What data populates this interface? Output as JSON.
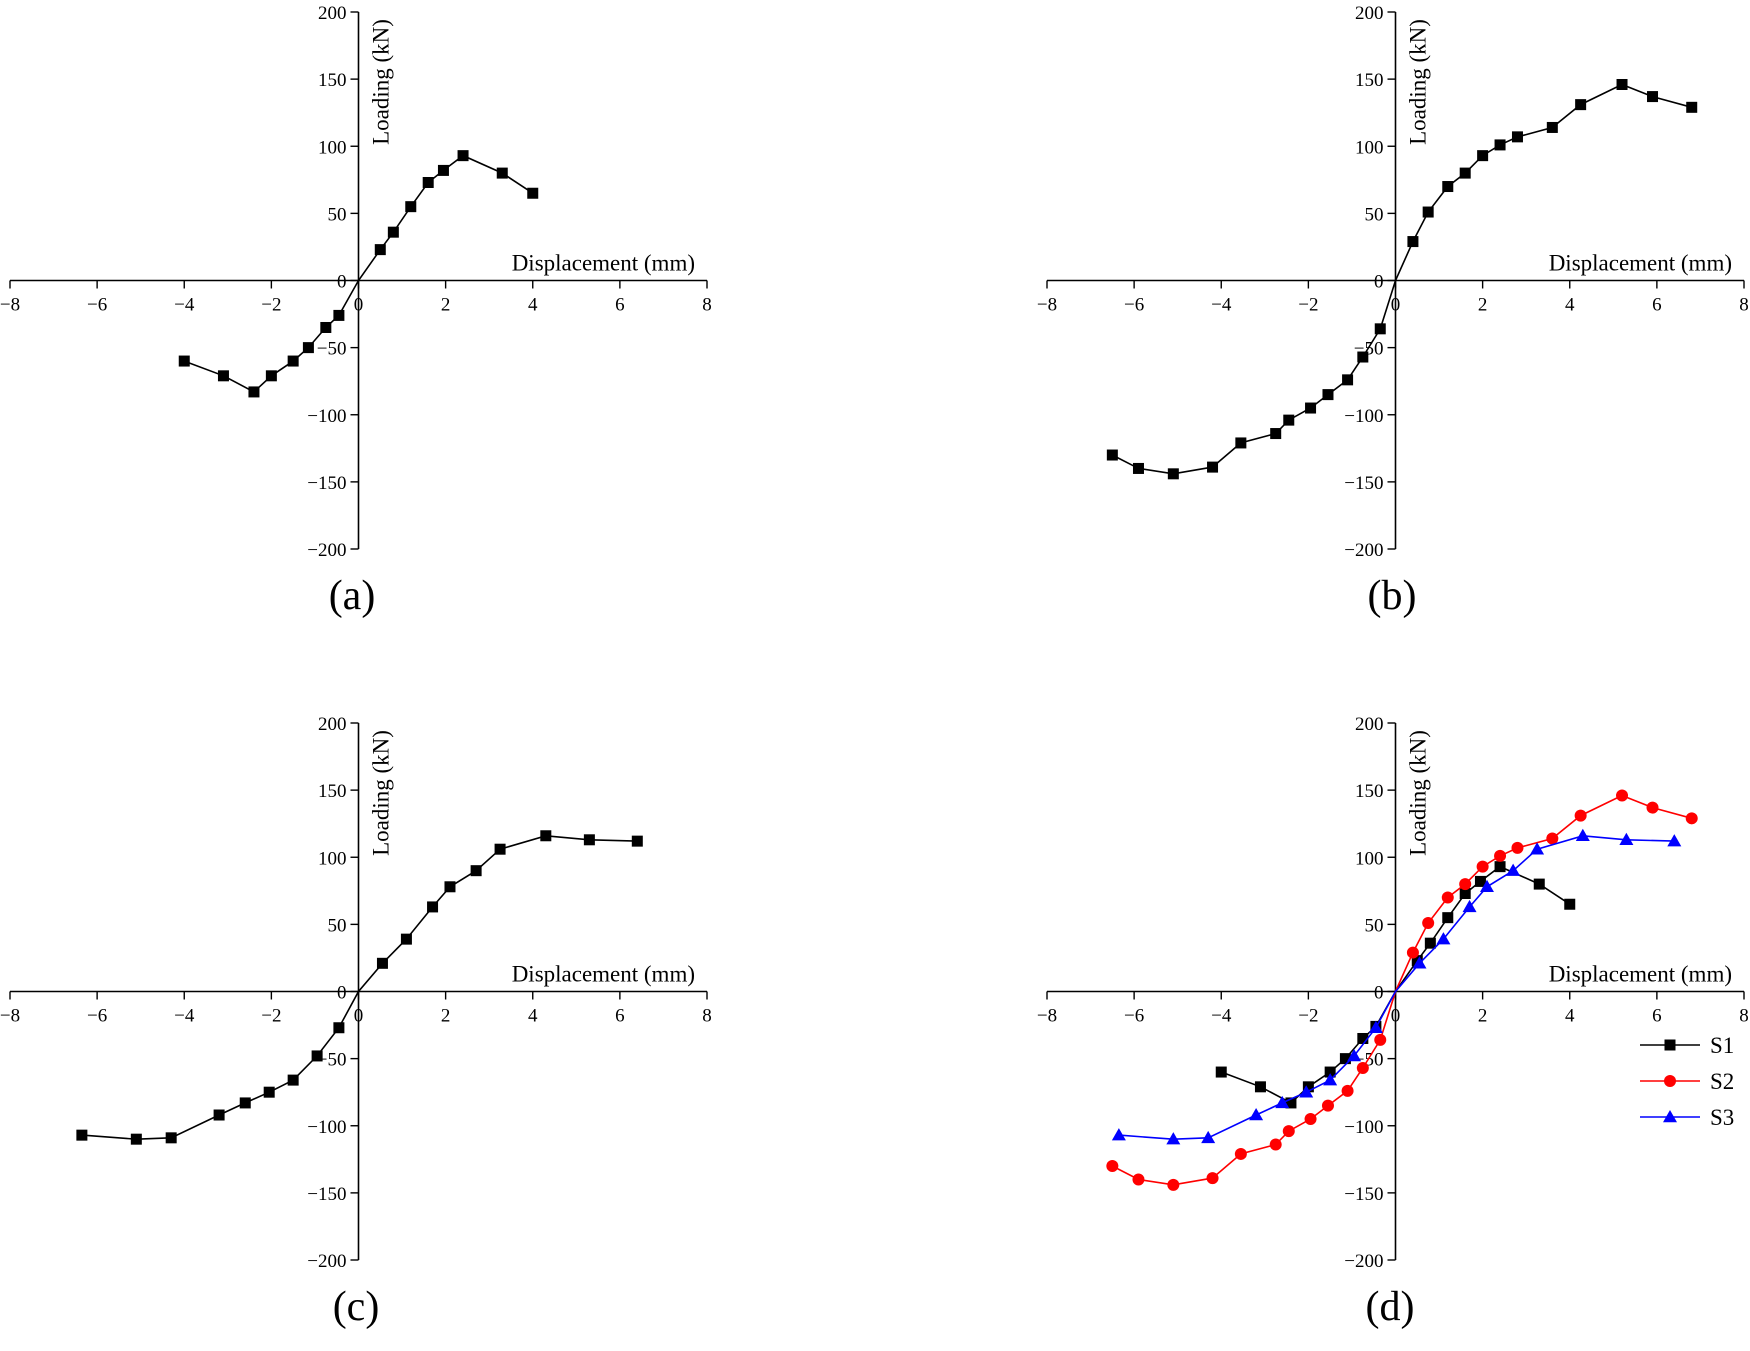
{
  "chart_data": [
    {
      "panel": "(a)",
      "type": "line",
      "xlabel": "Displacement (mm)",
      "ylabel": "Loading (kN)",
      "xlim": [
        -8,
        8
      ],
      "ylim": [
        -200,
        200
      ],
      "xticks": [
        -8,
        -6,
        -4,
        -2,
        0,
        2,
        4,
        6,
        8
      ],
      "yticks": [
        -200,
        -150,
        -100,
        -50,
        0,
        50,
        100,
        150,
        200
      ],
      "xtick_labels": [
        "−8",
        "−6",
        "−4",
        "−2",
        "0",
        "2",
        "4",
        "6",
        "8"
      ],
      "ytick_labels": [
        "−200",
        "−150",
        "−100",
        "−50",
        "0",
        "50",
        "100",
        "150",
        "200"
      ],
      "legend": false,
      "series": [
        {
          "color": "#000000",
          "marker": "square",
          "x": [
            -4.0,
            -3.1,
            -2.4,
            -2.0,
            -1.5,
            -1.15,
            -0.75,
            -0.45,
            0,
            0.5,
            0.8,
            1.2,
            1.6,
            1.95,
            2.4,
            3.3,
            4.0
          ],
          "y": [
            -60,
            -71,
            -83,
            -71,
            -60,
            -50,
            -35,
            -26,
            0,
            23,
            36,
            55,
            73,
            82,
            93,
            80,
            65
          ]
        }
      ]
    },
    {
      "panel": "(b)",
      "type": "line",
      "xlabel": "Displacement (mm)",
      "ylabel": "Loading (kN)",
      "xlim": [
        -8,
        8
      ],
      "ylim": [
        -200,
        200
      ],
      "xticks": [
        -8,
        -6,
        -4,
        -2,
        0,
        2,
        4,
        6,
        8
      ],
      "yticks": [
        -200,
        -150,
        -100,
        -50,
        0,
        50,
        100,
        150,
        200
      ],
      "xtick_labels": [
        "−8",
        "−6",
        "−4",
        "−2",
        "0",
        "2",
        "4",
        "6",
        "8"
      ],
      "ytick_labels": [
        "−200",
        "−150",
        "−100",
        "−50",
        "0",
        "50",
        "100",
        "150",
        "200"
      ],
      "legend": false,
      "series": [
        {
          "color": "#000000",
          "marker": "square",
          "x": [
            -6.5,
            -5.9,
            -5.1,
            -4.2,
            -3.55,
            -2.75,
            -2.45,
            -1.95,
            -1.55,
            -1.1,
            -0.75,
            -0.35,
            0,
            0.4,
            0.75,
            1.2,
            1.6,
            2.0,
            2.4,
            2.8,
            3.6,
            4.25,
            5.2,
            5.9,
            6.8
          ],
          "y": [
            -130,
            -140,
            -144,
            -139,
            -121,
            -114,
            -104,
            -95,
            -85,
            -74,
            -57,
            -36,
            0,
            29,
            51,
            70,
            80,
            93,
            101,
            107,
            114,
            131,
            146,
            137,
            129
          ]
        }
      ]
    },
    {
      "panel": "(c)",
      "type": "line",
      "xlabel": "Displacement (mm)",
      "ylabel": "Loading (kN)",
      "xlim": [
        -8,
        8
      ],
      "ylim": [
        -200,
        200
      ],
      "xticks": [
        -8,
        -6,
        -4,
        -2,
        0,
        2,
        4,
        6,
        8
      ],
      "yticks": [
        -200,
        -150,
        -100,
        -50,
        0,
        50,
        100,
        150,
        200
      ],
      "xtick_labels": [
        "−8",
        "−6",
        "−4",
        "−2",
        "0",
        "2",
        "4",
        "6",
        "8"
      ],
      "ytick_labels": [
        "−200",
        "−150",
        "−100",
        "−50",
        "0",
        "50",
        "100",
        "150",
        "200"
      ],
      "legend": false,
      "series": [
        {
          "color": "#000000",
          "marker": "square",
          "x": [
            -6.35,
            -5.1,
            -4.3,
            -3.2,
            -2.6,
            -2.05,
            -1.5,
            -0.95,
            -0.45,
            0,
            0.55,
            1.1,
            1.7,
            2.1,
            2.7,
            3.25,
            4.3,
            5.3,
            6.4
          ],
          "y": [
            -107,
            -110,
            -109,
            -92,
            -83,
            -75,
            -66,
            -48,
            -27,
            0,
            21,
            39,
            63,
            78,
            90,
            106,
            116,
            113,
            112
          ]
        }
      ]
    },
    {
      "panel": "(d)",
      "type": "line",
      "xlabel": "Displacement (mm)",
      "ylabel": "Loading (kN)",
      "xlim": [
        -8,
        8
      ],
      "ylim": [
        -200,
        200
      ],
      "xticks": [
        -8,
        -6,
        -4,
        -2,
        0,
        2,
        4,
        6,
        8
      ],
      "yticks": [
        -200,
        -150,
        -100,
        -50,
        0,
        50,
        100,
        150,
        200
      ],
      "xtick_labels": [
        "−8",
        "−6",
        "−4",
        "−2",
        "0",
        "2",
        "4",
        "6",
        "8"
      ],
      "ytick_labels": [
        "−200",
        "−150",
        "−100",
        "−50",
        "0",
        "50",
        "100",
        "150",
        "200"
      ],
      "legend": true,
      "legend_position": "right",
      "series": [
        {
          "name": "S1",
          "color": "#000000",
          "marker": "square",
          "x": [
            -4.0,
            -3.1,
            -2.4,
            -2.0,
            -1.5,
            -1.15,
            -0.75,
            -0.45,
            0,
            0.5,
            0.8,
            1.2,
            1.6,
            1.95,
            2.4,
            3.3,
            4.0
          ],
          "y": [
            -60,
            -71,
            -83,
            -71,
            -60,
            -50,
            -35,
            -26,
            0,
            23,
            36,
            55,
            73,
            82,
            93,
            80,
            65
          ]
        },
        {
          "name": "S2",
          "color": "#ff0000",
          "marker": "circle",
          "x": [
            -6.5,
            -5.9,
            -5.1,
            -4.2,
            -3.55,
            -2.75,
            -2.45,
            -1.95,
            -1.55,
            -1.1,
            -0.75,
            -0.35,
            0,
            0.4,
            0.75,
            1.2,
            1.6,
            2.0,
            2.4,
            2.8,
            3.6,
            4.25,
            5.2,
            5.9,
            6.8
          ],
          "y": [
            -130,
            -140,
            -144,
            -139,
            -121,
            -114,
            -104,
            -95,
            -85,
            -74,
            -57,
            -36,
            0,
            29,
            51,
            70,
            80,
            93,
            101,
            107,
            114,
            131,
            146,
            137,
            129
          ]
        },
        {
          "name": "S3",
          "color": "#0000ff",
          "marker": "triangle",
          "x": [
            -6.35,
            -5.1,
            -4.3,
            -3.2,
            -2.6,
            -2.05,
            -1.5,
            -0.95,
            -0.45,
            0,
            0.55,
            1.1,
            1.7,
            2.1,
            2.7,
            3.25,
            4.3,
            5.3,
            6.4
          ],
          "y": [
            -107,
            -110,
            -109,
            -92,
            -83,
            -75,
            -66,
            -48,
            -27,
            0,
            21,
            39,
            63,
            78,
            90,
            106,
            116,
            113,
            112
          ]
        }
      ]
    }
  ]
}
